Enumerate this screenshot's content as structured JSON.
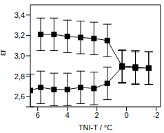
{
  "chart_data": {
    "type": "line",
    "x_label": "TNI-T / °C",
    "y_label": "εr",
    "xlim": [
      6.5,
      -2.3
    ],
    "xticks": [
      6,
      4,
      2,
      0,
      -2
    ],
    "ylim": [
      2.5,
      3.5
    ],
    "yticks": [
      {
        "value": 2.6,
        "label": "2,6"
      },
      {
        "value": 2.8,
        "label": "2,8"
      },
      {
        "value": 3.0,
        "label": "3,0"
      },
      {
        "value": 3.2,
        "label": "3,2"
      },
      {
        "value": 3.4,
        "label": "3,4"
      }
    ],
    "grid": false,
    "marker": "square",
    "series": [
      {
        "color": "#000000",
        "x": [
          5.8,
          4.9,
          4.0,
          3.1,
          2.2,
          1.3,
          0.3,
          -0.6,
          -1.5
        ],
        "values": [
          3.21,
          3.21,
          3.19,
          3.18,
          3.17,
          3.15,
          2.9,
          2.89,
          2.88
        ],
        "errors": [
          0.16,
          0.16,
          0.16,
          0.16,
          0.16,
          0.16,
          0.16,
          0.16,
          0.16
        ]
      },
      {
        "color": "#000000",
        "x": [
          6.5,
          5.8,
          4.9,
          4.0,
          3.1,
          2.2,
          1.3,
          0.3,
          -0.6,
          -1.5
        ],
        "values": [
          2.66,
          2.69,
          2.67,
          2.67,
          2.69,
          2.68,
          2.73,
          2.89,
          2.88,
          2.88
        ],
        "errors": [
          0.16,
          0.16,
          0.16,
          0.16,
          0.16,
          0.16,
          0.16,
          0.16,
          0.16,
          0.16
        ]
      }
    ]
  }
}
